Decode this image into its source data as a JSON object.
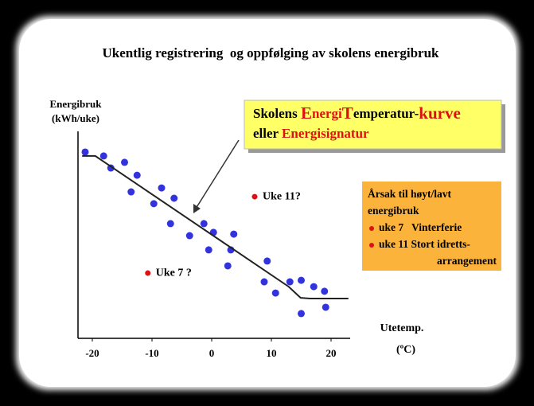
{
  "chart_data": {
    "type": "scatter",
    "title": "Ukentlig registrering  og oppfølging av skolens energibruk",
    "y_label": [
      "Energibruk",
      "(kWh/uke)"
    ],
    "x_label": [
      "Utetemp.",
      "(ºC)"
    ],
    "xlim": [
      -22.4,
      23.2
    ],
    "ylim": [
      0,
      100
    ],
    "xticks": [
      -20,
      -10,
      0,
      10,
      20
    ],
    "series": [
      {
        "type": "scatter",
        "color": "#3333dd",
        "x": [
          -21.2,
          -18.1,
          -16.9,
          -14.6,
          -12.5,
          -13.5,
          -8.4,
          -6.3,
          -9.7,
          -6.9,
          -1.3,
          -3.7,
          0.3,
          3.7,
          -0.5,
          3.2,
          2.7,
          9.3,
          8.8,
          10.7,
          13.1,
          15,
          17.1,
          18.9,
          15,
          19.1
        ],
        "values": [
          85.1,
          83.3,
          77.8,
          80.4,
          74.5,
          66.9,
          68.7,
          64,
          61.5,
          52.4,
          52.4,
          46.9,
          48.4,
          47.6,
          40.4,
          40.4,
          33.1,
          35.3,
          25.8,
          20.7,
          25.8,
          26.5,
          23.6,
          21.5,
          11.3,
          14.2
        ]
      },
      {
        "type": "scatter",
        "color": "#dd1111",
        "x": [
          -10.7,
          7.2
        ],
        "values": [
          29.8,
          64.7
        ],
        "point_labels": [
          "Uke 7 ?",
          "Uke 11?"
        ]
      },
      {
        "type": "line",
        "color": "#222222",
        "x": [
          -21.7,
          -19.5,
          12.9,
          14.9,
          16.5,
          22.9
        ],
        "values": [
          83.3,
          83.3,
          23.6,
          18.5,
          18.2,
          18.2
        ]
      }
    ],
    "callout": {
      "lines": [
        [
          {
            "text": "Skolens ",
            "color": "#000000"
          },
          {
            "text": "E",
            "color": "#dd1111",
            "big": true
          },
          {
            "text": "nergi",
            "color": "#dd1111"
          },
          {
            "text": "T",
            "color": "#dd1111",
            "big": true
          },
          {
            "text": "emperatur-",
            "color": "#000000"
          },
          {
            "text": "kurve",
            "color": "#dd1111",
            "big": true
          }
        ],
        [
          {
            "text": "eller ",
            "color": "#000000"
          },
          {
            "text": "Energisignatur",
            "color": "#dd1111"
          }
        ]
      ]
    },
    "legend": {
      "lines": [
        {
          "text": "Årsak til høyt/lavt",
          "bullet": false
        },
        {
          "text": "energibruk",
          "bullet": false
        },
        {
          "text": "uke 7   Vinterferie",
          "bullet": true
        },
        {
          "text": "uke 11 Stort idretts-",
          "bullet": true
        },
        {
          "text": "arrangement",
          "bullet": false
        }
      ]
    }
  }
}
